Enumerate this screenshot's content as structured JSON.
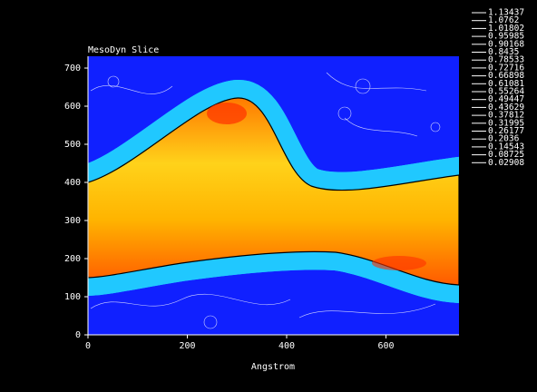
{
  "chart_data": {
    "type": "contour",
    "title": "MesoDyn Slice",
    "x_label": "Angstrom",
    "xlim": [
      0,
      747
    ],
    "xticks": [
      0,
      200,
      400,
      600
    ],
    "ylim": [
      0,
      731
    ],
    "yticks": [
      0,
      100,
      200,
      300,
      400,
      500,
      600,
      700
    ],
    "levels": [
      1.13437,
      1.0762,
      1.01802,
      0.95985,
      0.90168,
      0.8435,
      0.78533,
      0.72716,
      0.66898,
      0.61081,
      0.55264,
      0.49447,
      0.43629,
      0.37812,
      0.31995,
      0.26177,
      0.2036,
      0.14543,
      0.08725,
      0.02908
    ],
    "level_color": "#ffffff"
  }
}
